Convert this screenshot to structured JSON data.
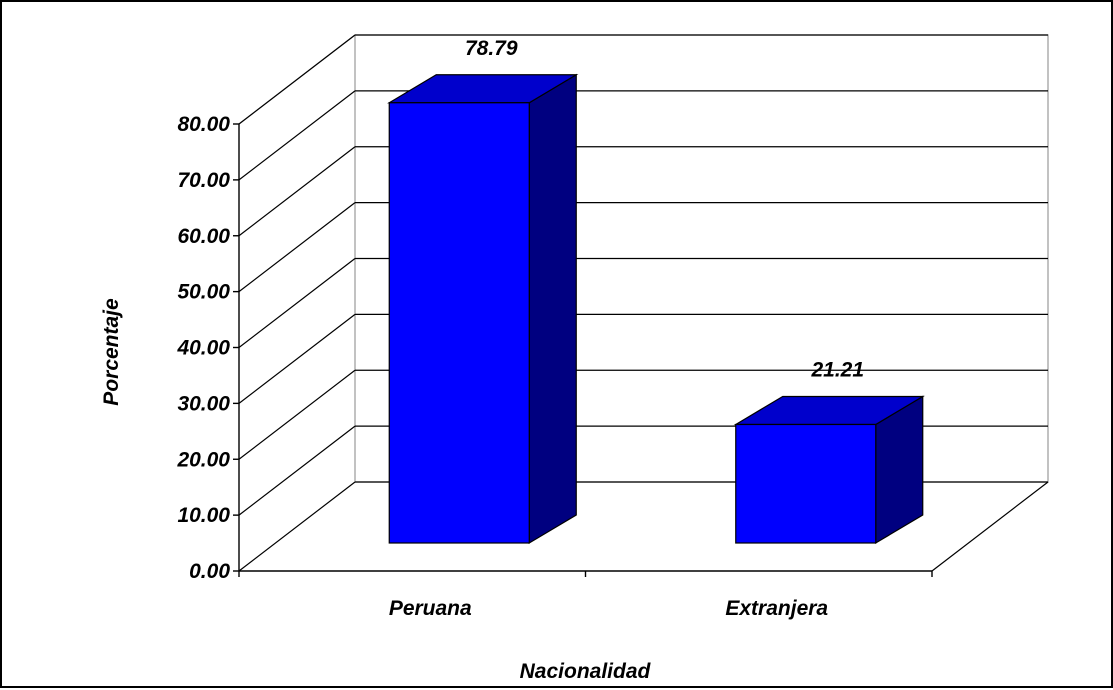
{
  "chart_data": {
    "type": "bar",
    "title": "",
    "categories": [
      "Peruana",
      "Extranjera"
    ],
    "values": [
      78.79,
      21.21
    ],
    "data_labels": [
      "78.79",
      "21.21"
    ],
    "xlabel": "Nacionalidad",
    "ylabel": "Porcentaje",
    "ylim": [
      0,
      80
    ],
    "yticks": [
      "0.00",
      "10.00",
      "20.00",
      "30.00",
      "40.00",
      "50.00",
      "60.00",
      "70.00",
      "80.00"
    ],
    "grid": true,
    "legend": "none",
    "colors": {
      "bar_front": "#0000ff",
      "bar_top": "#0000cc",
      "bar_side": "#000080",
      "grid": "#000000",
      "background": "#ffffff"
    }
  }
}
